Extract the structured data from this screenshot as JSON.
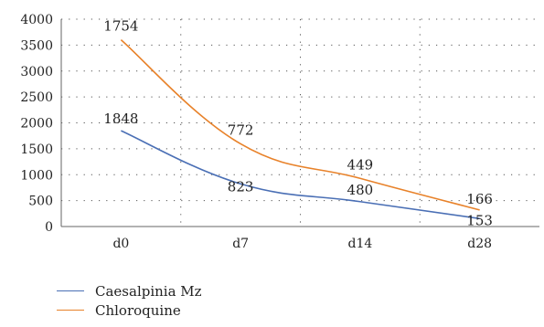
{
  "chart_data": {
    "type": "line",
    "categories": [
      "d0",
      "d7",
      "d14",
      "d28"
    ],
    "ylim": [
      0,
      4000
    ],
    "yticks": [
      0,
      500,
      1000,
      1500,
      2000,
      2500,
      3000,
      3500,
      4000
    ],
    "grid": "dotted",
    "legend_position": "bottom-left",
    "series": [
      {
        "name": "Caesalpinia Mz",
        "color": "#4a6fb5",
        "values": [
          1848,
          823,
          480,
          153
        ],
        "labels": [
          "1848",
          "823",
          "480",
          "153"
        ]
      },
      {
        "name": "Chloroquine",
        "color": "#e8822a",
        "values": [
          3602,
          1595,
          929,
          319
        ],
        "labels": [
          "1754",
          "772",
          "449",
          "166"
        ]
      }
    ]
  }
}
